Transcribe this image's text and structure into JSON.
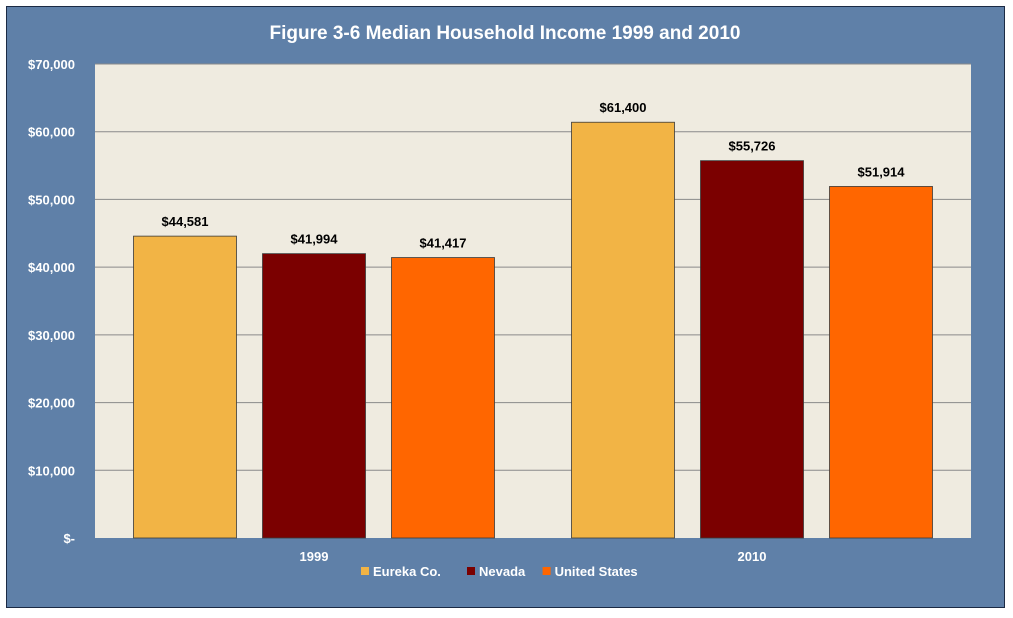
{
  "colors": {
    "frame_bg": "#5f80a8",
    "plot_bg": "#efebe0",
    "gridline": "#8a8a8a",
    "title_text": "#ffffff",
    "axis_text": "#ffffff",
    "label_text": "#000000"
  },
  "chart_data": {
    "type": "bar",
    "title": "Figure 3-6 Median Household Income 1999 and 2010",
    "xlabel": "",
    "ylabel": "",
    "categories": [
      "1999",
      "2010"
    ],
    "ylim": [
      0,
      70000
    ],
    "yticks": [
      0,
      10000,
      20000,
      30000,
      40000,
      50000,
      60000,
      70000
    ],
    "ytick_labels": [
      "$-",
      "$10,000",
      "$20,000",
      "$30,000",
      "$40,000",
      "$50,000",
      "$60,000",
      "$70,000"
    ],
    "grid": true,
    "legend_position": "bottom",
    "series": [
      {
        "name": "Eureka Co.",
        "color": "#f2b445",
        "values": [
          44581,
          61400
        ],
        "labels": [
          "$44,581",
          "$61,400"
        ]
      },
      {
        "name": "Nevada",
        "color": "#7b0000",
        "values": [
          41994,
          55726
        ],
        "labels": [
          "$41,994",
          "$55,726"
        ]
      },
      {
        "name": "United States",
        "color": "#ff6600",
        "values": [
          41417,
          51914
        ],
        "labels": [
          "$41,417",
          "$51,914"
        ]
      }
    ]
  }
}
